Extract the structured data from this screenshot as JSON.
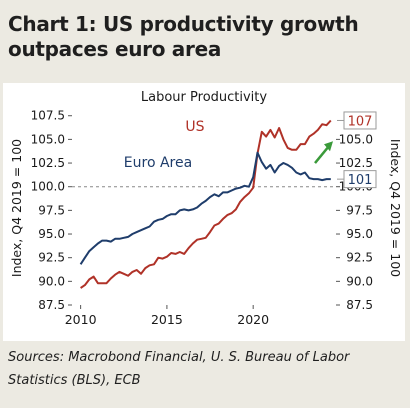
{
  "headline": "Chart 1: US productivity growth outpaces euro area",
  "sources": "Sources: Macrobond Financial, U. S. Bureau of Labor Statistics (BLS), ECB",
  "chart_data": {
    "type": "line",
    "title": "Labour Productivity",
    "ylabel_left": "Index, Q4 2019 = 100",
    "ylabel_right": "Index, Q4 2019 = 100",
    "xlim": [
      2009.5,
      2024.8
    ],
    "ylim": [
      87.5,
      108.0
    ],
    "xticks": [
      2010,
      2015,
      2020
    ],
    "xtick_labels": [
      "2010",
      "2015",
      "2020"
    ],
    "yticks": [
      87.5,
      90.0,
      92.5,
      95.0,
      97.5,
      100.0,
      102.5,
      105.0,
      107.5
    ],
    "ytick_labels_left": [
      "87.5",
      "90.0",
      "92.5",
      "95.0",
      "97.5",
      "100.0",
      "102.5",
      "105.0",
      "107.5"
    ],
    "ytick_labels_right": [
      "87.5",
      "90.0",
      "92.5",
      "95.0",
      "97.5",
      "100.0",
      "102.5",
      "105.0"
    ],
    "reference_line": 100,
    "series": [
      {
        "name": "US",
        "color": "#b03228",
        "end_label": "107",
        "x": [
          2010.0,
          2010.25,
          2010.5,
          2010.75,
          2011.0,
          2011.25,
          2011.5,
          2011.75,
          2012.0,
          2012.25,
          2012.5,
          2012.75,
          2013.0,
          2013.25,
          2013.5,
          2013.75,
          2014.0,
          2014.25,
          2014.5,
          2014.75,
          2015.0,
          2015.25,
          2015.5,
          2015.75,
          2016.0,
          2016.25,
          2016.5,
          2016.75,
          2017.0,
          2017.25,
          2017.5,
          2017.75,
          2018.0,
          2018.25,
          2018.5,
          2018.75,
          2019.0,
          2019.25,
          2019.5,
          2019.75,
          2020.0,
          2020.25,
          2020.5,
          2020.75,
          2021.0,
          2021.25,
          2021.5,
          2021.75,
          2022.0,
          2022.25,
          2022.5,
          2022.75,
          2023.0,
          2023.25,
          2023.5,
          2023.75,
          2024.0,
          2024.25,
          2024.5
        ],
        "values": [
          89.3,
          89.6,
          90.2,
          90.5,
          89.8,
          89.8,
          89.8,
          90.3,
          90.7,
          91.0,
          90.8,
          90.6,
          91.0,
          91.2,
          90.8,
          91.4,
          91.7,
          91.8,
          92.5,
          92.4,
          92.6,
          93.0,
          92.9,
          93.1,
          92.9,
          93.5,
          94.0,
          94.4,
          94.5,
          94.6,
          95.2,
          95.9,
          96.1,
          96.6,
          97.0,
          97.2,
          97.6,
          98.4,
          98.9,
          99.3,
          99.9,
          103.5,
          105.8,
          105.3,
          106.0,
          105.2,
          106.2,
          105.0,
          104.1,
          103.9,
          103.9,
          104.5,
          104.5,
          105.3,
          105.6,
          106.0,
          106.6,
          106.5,
          107.0
        ]
      },
      {
        "name": "Euro Area",
        "color": "#1f3d6b",
        "end_label": "101",
        "x": [
          2010.0,
          2010.25,
          2010.5,
          2010.75,
          2011.0,
          2011.25,
          2011.5,
          2011.75,
          2012.0,
          2012.25,
          2012.5,
          2012.75,
          2013.0,
          2013.25,
          2013.5,
          2013.75,
          2014.0,
          2014.25,
          2014.5,
          2014.75,
          2015.0,
          2015.25,
          2015.5,
          2015.75,
          2016.0,
          2016.25,
          2016.5,
          2016.75,
          2017.0,
          2017.25,
          2017.5,
          2017.75,
          2018.0,
          2018.25,
          2018.5,
          2018.75,
          2019.0,
          2019.25,
          2019.5,
          2019.75,
          2020.0,
          2020.25,
          2020.5,
          2020.75,
          2021.0,
          2021.25,
          2021.5,
          2021.75,
          2022.0,
          2022.25,
          2022.5,
          2022.75,
          2023.0,
          2023.25,
          2023.5,
          2023.75,
          2024.0,
          2024.25,
          2024.5
        ],
        "values": [
          91.8,
          92.5,
          93.2,
          93.6,
          94.0,
          94.3,
          94.3,
          94.2,
          94.5,
          94.5,
          94.6,
          94.7,
          95.0,
          95.2,
          95.4,
          95.6,
          95.8,
          96.3,
          96.5,
          96.6,
          96.9,
          97.1,
          97.1,
          97.5,
          97.6,
          97.5,
          97.6,
          97.8,
          98.2,
          98.5,
          98.9,
          99.2,
          99.0,
          99.4,
          99.4,
          99.6,
          99.8,
          99.9,
          100.1,
          100.0,
          101.0,
          103.6,
          102.6,
          101.9,
          102.3,
          101.5,
          102.2,
          102.5,
          102.3,
          102.0,
          101.5,
          101.3,
          101.5,
          100.9,
          100.8,
          100.8,
          100.7,
          100.8,
          100.8
        ]
      }
    ],
    "grid": false,
    "annotation": "green arrow pointing up-right toward the US end label",
    "annotation_color": "#3a9a3a"
  }
}
